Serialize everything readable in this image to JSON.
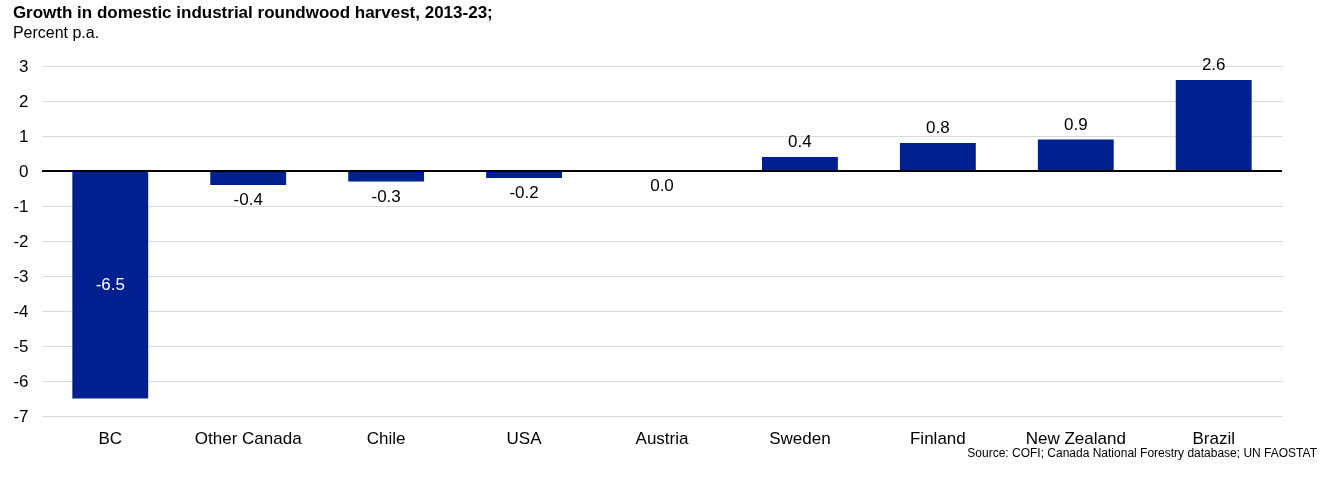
{
  "chart_data": {
    "type": "bar",
    "title": "Growth in domestic industrial roundwood harvest, 2013-23;",
    "subtitle": "Percent p.a.",
    "categories": [
      "BC",
      "Other Canada",
      "Chile",
      "USA",
      "Austria",
      "Sweden",
      "Finland",
      "New Zealand",
      "Brazil"
    ],
    "values": [
      -6.5,
      -0.4,
      -0.3,
      -0.2,
      0.0,
      0.4,
      0.8,
      0.9,
      2.6
    ],
    "value_labels": [
      "-6.5",
      "-0.4",
      "-0.3",
      "-0.2",
      "0.0",
      "0.4",
      "0.8",
      "0.9",
      "2.6"
    ],
    "color": "#00208f",
    "ylim": [
      -7,
      3
    ],
    "yticks": [
      -7,
      -6,
      -5,
      -4,
      -3,
      -2,
      -1,
      0,
      1,
      2,
      3
    ],
    "grid": "y",
    "annotations": [
      "Source: COFI; Canada National Forestry database; UN FAOSTAT"
    ]
  }
}
